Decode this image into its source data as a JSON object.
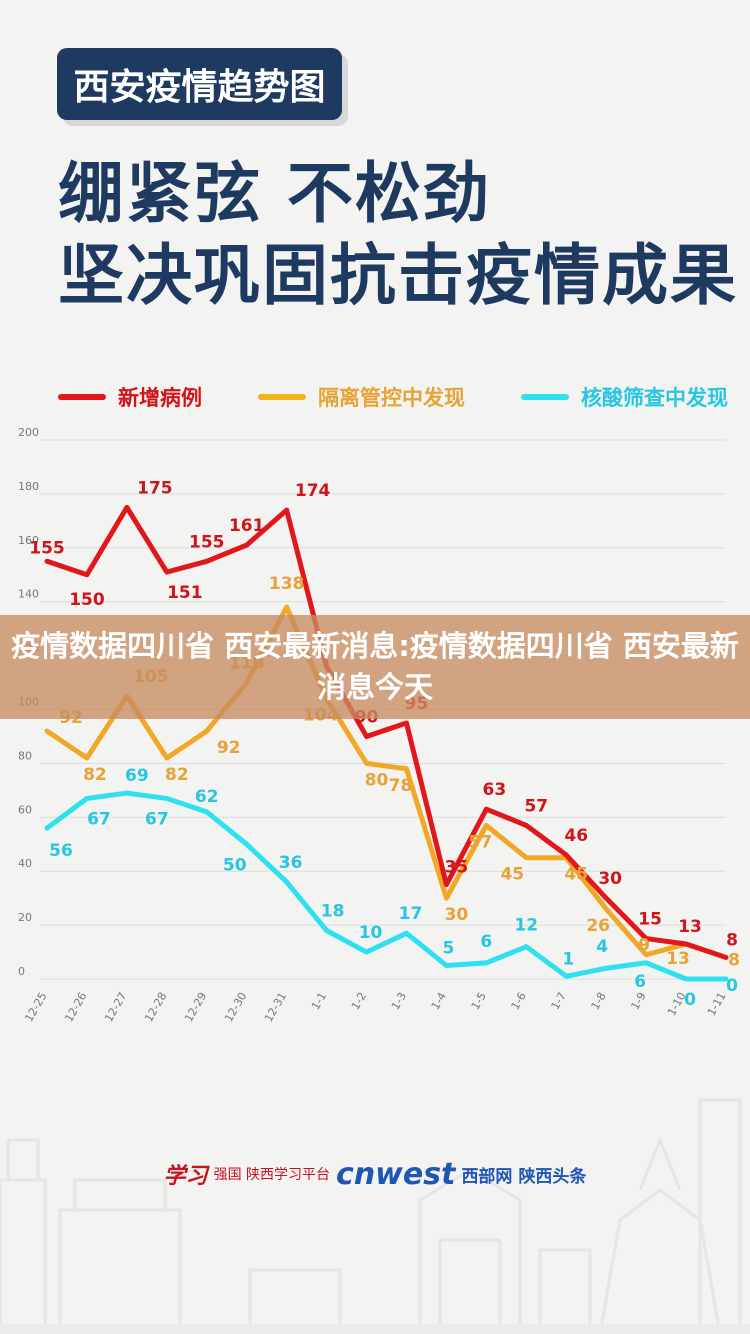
{
  "header": {
    "tag": "西安疫情趋势图",
    "line1": "绷紧弦  不松劲",
    "line2": "坚决巩固抗击疫情成果"
  },
  "banner": {
    "text": "疫情数据四川省 西安最新消息:疫情数据四川省 西安最新消息今天"
  },
  "sources": {
    "s1": "学习",
    "s2": "强国 陕西学习平台",
    "s3": "cnwest",
    "s4": "西部网",
    "s5": "陕西头条"
  },
  "colors": {
    "title_navy": "#1f3a60",
    "red": "#e2171b",
    "orange": "#f0a826",
    "cyan": "#2ee0f0",
    "banner": "#c78c62"
  },
  "chart_data": {
    "type": "line",
    "categories": [
      "12-25",
      "12-26",
      "12-27",
      "12-28",
      "12-29",
      "12-30",
      "12-31",
      "1-1",
      "1-2",
      "1-3",
      "1-4",
      "1-5",
      "1-6",
      "1-7",
      "1-8",
      "1-9",
      "1-10",
      "1-11"
    ],
    "ylim": [
      0,
      200
    ],
    "yticks": [
      0,
      20,
      40,
      60,
      80,
      100,
      120,
      140,
      160,
      180,
      200
    ],
    "grid": true,
    "legend_position": "top",
    "series": [
      {
        "name": "新增病例",
        "color": "#e2171b",
        "label_color": "#d0151a",
        "values": [
          155,
          150,
          175,
          151,
          155,
          161,
          174,
          116,
          90,
          95,
          35,
          63,
          57,
          46,
          30,
          15,
          13,
          8
        ]
      },
      {
        "name": "隔离管控中发现",
        "color": "#f0a826",
        "label_color": "#e8a338",
        "values": [
          92,
          82,
          105,
          82,
          92,
          110,
          138,
          104,
          80,
          78,
          30,
          57,
          45,
          45,
          26,
          9,
          13,
          8
        ]
      },
      {
        "name": "核酸筛查中发现",
        "color": "#2ee0f0",
        "label_color": "#27c6e2",
        "values": [
          56,
          67,
          69,
          67,
          62,
          50,
          36,
          18,
          10,
          17,
          5,
          6,
          12,
          1,
          4,
          6,
          0,
          0
        ]
      }
    ]
  }
}
